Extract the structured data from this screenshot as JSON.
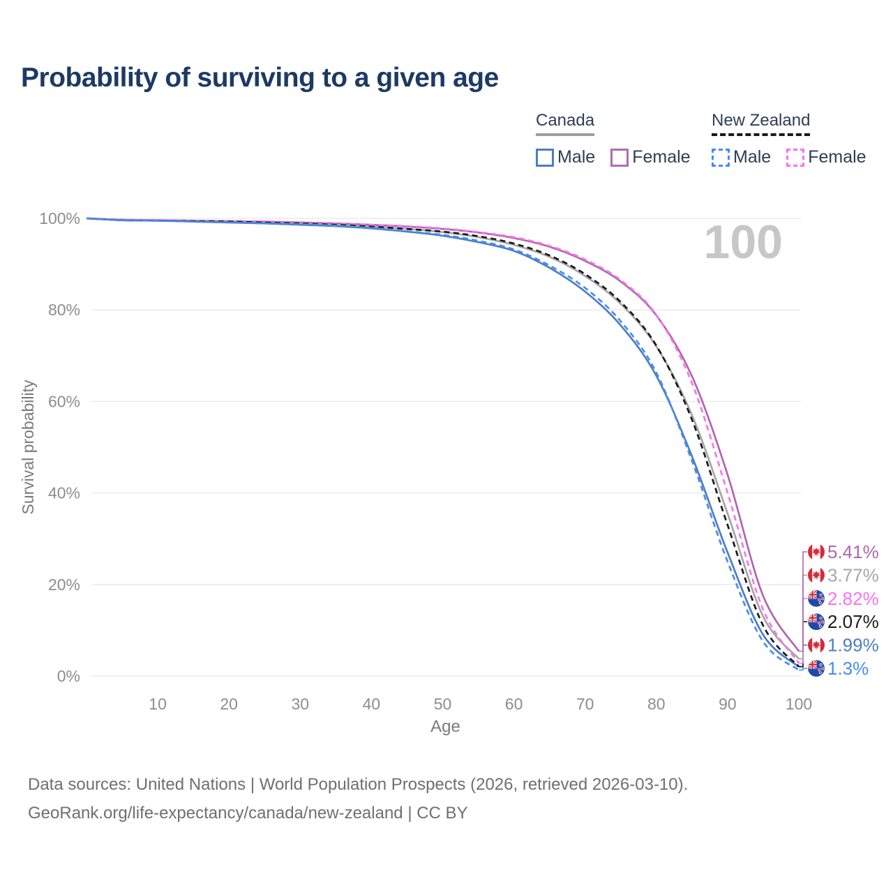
{
  "title": "Probability of surviving to a given age",
  "legend": {
    "groups": [
      {
        "label": "Canada",
        "line_style": "solid",
        "line_color": "#9e9e9e",
        "items": [
          {
            "label": "Male",
            "color": "#4d7ec2",
            "dashed": false
          },
          {
            "label": "Female",
            "color": "#b06cb3",
            "dashed": false
          }
        ]
      },
      {
        "label": "New Zealand",
        "line_style": "dashed",
        "line_color": "#1a1a1a",
        "items": [
          {
            "label": "Male",
            "color": "#478cf2",
            "dashed": true
          },
          {
            "label": "Female",
            "color": "#f973ef",
            "dashed": true
          }
        ]
      }
    ]
  },
  "chart_data": {
    "type": "line",
    "title": "Probability of surviving to a given age",
    "xlabel": "Age",
    "ylabel": "Survival probability",
    "xlim": [
      0,
      100
    ],
    "ylim": [
      0,
      100
    ],
    "grid": "horizontal-only",
    "legend_position": "top-right",
    "hover_age_label": "100",
    "x_ticks": [
      {
        "value": 10,
        "label": "10"
      },
      {
        "value": 20,
        "label": "20"
      },
      {
        "value": 30,
        "label": "30"
      },
      {
        "value": 40,
        "label": "40"
      },
      {
        "value": 50,
        "label": "50"
      },
      {
        "value": 60,
        "label": "60"
      },
      {
        "value": 70,
        "label": "70"
      },
      {
        "value": 80,
        "label": "80"
      },
      {
        "value": 90,
        "label": "90"
      },
      {
        "value": 100,
        "label": "100"
      }
    ],
    "y_ticks": [
      {
        "value": 0,
        "label": "0%"
      },
      {
        "value": 20,
        "label": "20%"
      },
      {
        "value": 40,
        "label": "40%"
      },
      {
        "value": 60,
        "label": "60%"
      },
      {
        "value": 80,
        "label": "80%"
      },
      {
        "value": 100,
        "label": "100%"
      }
    ],
    "ages": [
      0,
      5,
      10,
      15,
      20,
      25,
      30,
      35,
      40,
      45,
      50,
      55,
      60,
      65,
      70,
      75,
      80,
      85,
      90,
      95,
      100
    ],
    "series": [
      {
        "name": "Canada Female",
        "country": "Canada",
        "sex": "Female",
        "color": "#ad68ad",
        "dashed": false,
        "end_label": "5.41%",
        "values": [
          100,
          99.7,
          99.6,
          99.5,
          99.4,
          99.3,
          99.1,
          98.9,
          98.6,
          98.2,
          97.7,
          96.9,
          95.7,
          93.8,
          90.7,
          86.2,
          78.8,
          65.5,
          44,
          17.5,
          5.41
        ]
      },
      {
        "name": "Canada Total",
        "country": "Canada",
        "sex": "Total",
        "color": "#a6a6a6",
        "dashed": false,
        "end_label": "3.77%",
        "values": [
          100,
          99.6,
          99.5,
          99.4,
          99.3,
          99.1,
          98.9,
          98.6,
          98.2,
          97.7,
          97,
          95.9,
          94.2,
          91.6,
          87.4,
          81.3,
          72,
          57,
          35.5,
          13,
          3.77
        ]
      },
      {
        "name": "Canada Male",
        "country": "Canada",
        "sex": "Male",
        "color": "#4d7ec2",
        "dashed": false,
        "end_label": "1.99%",
        "values": [
          100,
          99.6,
          99.5,
          99.3,
          99.1,
          98.9,
          98.6,
          98.3,
          97.8,
          97.1,
          96.2,
          94.8,
          92.9,
          89.2,
          84,
          76.6,
          65.6,
          48,
          27,
          9,
          1.99
        ]
      },
      {
        "name": "New Zealand Female",
        "country": "New Zealand",
        "sex": "Female",
        "color": "#f973ef",
        "dashed": true,
        "end_label": "2.82%",
        "values": [
          100,
          99.7,
          99.6,
          99.5,
          99.4,
          99.3,
          99.1,
          98.9,
          98.6,
          98.3,
          97.8,
          97,
          95.9,
          94,
          91,
          86.5,
          78.9,
          64,
          40,
          14.5,
          2.82
        ]
      },
      {
        "name": "New Zealand Total",
        "country": "New Zealand",
        "sex": "Total",
        "color": "#1a1a1a",
        "dashed": true,
        "end_label": "2.07%",
        "values": [
          100,
          99.6,
          99.5,
          99.4,
          99.3,
          99.1,
          98.9,
          98.6,
          98.2,
          97.7,
          97.1,
          96.1,
          94.5,
          91.9,
          87.8,
          81.7,
          72.2,
          56,
          33,
          11,
          2.07
        ]
      },
      {
        "name": "New Zealand Male",
        "country": "New Zealand",
        "sex": "Male",
        "color": "#478cf2",
        "dashed": true,
        "end_label": "1.3%",
        "values": [
          100,
          99.6,
          99.5,
          99.3,
          99.1,
          98.9,
          98.7,
          98.4,
          97.9,
          97.2,
          96.4,
          95.1,
          93.2,
          89.7,
          84.8,
          77.5,
          66.3,
          47,
          25,
          7.5,
          1.3
        ]
      }
    ],
    "colors": {
      "grid": "#e8e8e8",
      "tick_text": "#8d8d8d",
      "watermark": "#c7c7c7",
      "canada_flag_red": "#d52b3a",
      "nz_flag_blue": "#1c49ae",
      "nz_star_red": "#cc2233"
    }
  },
  "source": {
    "line1": "Data sources: United Nations | World Population Prospects (2026, retrieved 2026-03-10).",
    "line2": "GeoRank.org/life-expectancy/canada/new-zealand | CC BY"
  }
}
